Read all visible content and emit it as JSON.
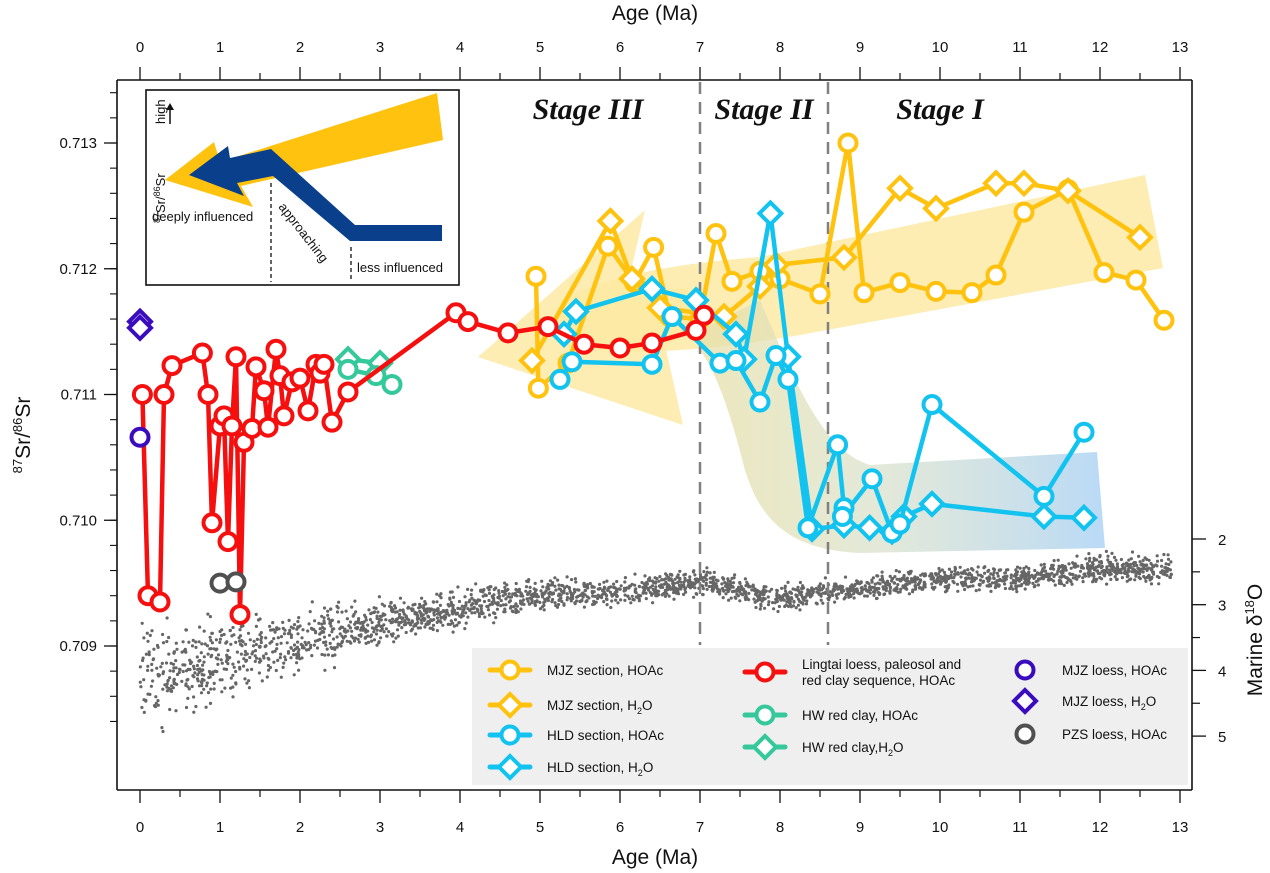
{
  "chart_data": {
    "type": "line",
    "title": "",
    "xlabel_bottom": "Age (Ma)",
    "xlabel_top": "Age (Ma)",
    "ylabel_left": {
      "sup": "87",
      "base": "Sr/",
      "sup2": "86",
      "base2": "Sr"
    },
    "ylabel_right": {
      "base": "Marine δ",
      "sup": "18",
      "base2": "O"
    },
    "xlim": [
      -0.3,
      13.3
    ],
    "ylim": [
      0.70818,
      0.71348
    ],
    "ylim_right_note": "inverted, 2 at top to 5 at bottom",
    "x_ticks": [
      0,
      1,
      2,
      3,
      4,
      5,
      6,
      7,
      8,
      9,
      10,
      11,
      12,
      13
    ],
    "y_ticks": [
      "0.709",
      "0.710",
      "0.711",
      "0.712",
      "0.713"
    ],
    "y_tick_values": [
      0.709,
      0.71,
      0.711,
      0.712,
      0.713
    ],
    "y_right_ticks": [
      2,
      3,
      4,
      5
    ],
    "grid": false,
    "stage_boundaries": [
      7.0,
      8.6
    ],
    "stage_labels": [
      {
        "label": "Stage III",
        "x": 5.6
      },
      {
        "label": "Stage II",
        "x": 7.8
      },
      {
        "label": "Stage I",
        "x": 10.0
      }
    ],
    "series": [
      {
        "name": "MJZ section, HOAc",
        "color": "#FFC20E",
        "marker": "circle",
        "line": true,
        "x": [
          4.95,
          4.98,
          5.35,
          5.85,
          6.18,
          6.42,
          6.62,
          7.0,
          7.2,
          7.4,
          7.75,
          8.0,
          8.5,
          8.85,
          9.05,
          9.5,
          9.95,
          10.4,
          10.7,
          11.05,
          11.6,
          12.05,
          12.45,
          12.8
        ],
        "y": [
          0.71194,
          0.71105,
          0.71125,
          0.71218,
          0.71189,
          0.71217,
          0.71162,
          0.7116,
          0.71228,
          0.7119,
          0.71198,
          0.71192,
          0.7118,
          0.713,
          0.71181,
          0.71189,
          0.71182,
          0.71181,
          0.71195,
          0.71245,
          0.71263,
          0.71197,
          0.71191,
          0.71159
        ]
      },
      {
        "name": "MJZ section, H2O",
        "color": "#FFC20E",
        "marker": "diamond",
        "line": true,
        "x": [
          4.9,
          5.88,
          6.15,
          6.5,
          7.3,
          7.75,
          7.95,
          8.8,
          9.5,
          9.95,
          10.7,
          11.05,
          11.6,
          12.5
        ],
        "y": [
          0.71127,
          0.71238,
          0.71192,
          0.71169,
          0.71162,
          0.71186,
          0.71203,
          0.71209,
          0.71264,
          0.71248,
          0.71268,
          0.71268,
          0.71262,
          0.71225
        ]
      },
      {
        "name": "HLD section, HOAc",
        "color": "#12C3F0",
        "marker": "circle",
        "line": true,
        "x": [
          5.25,
          5.4,
          6.4,
          6.65,
          7.25,
          7.45,
          7.75,
          7.95,
          8.1,
          8.35,
          8.72,
          8.8,
          8.78,
          9.15,
          9.4,
          9.5,
          9.9,
          11.3,
          11.8
        ],
        "y": [
          0.71112,
          0.71126,
          0.71124,
          0.71162,
          0.71125,
          0.71127,
          0.71094,
          0.71131,
          0.71112,
          0.70994,
          0.7106,
          0.7101,
          0.71003,
          0.71033,
          0.7099,
          0.70997,
          0.71092,
          0.71019,
          0.7107
        ]
      },
      {
        "name": "HLD section, H2O",
        "color": "#12C3F0",
        "marker": "diamond",
        "line": true,
        "x": [
          5.3,
          5.45,
          6.4,
          6.95,
          7.45,
          7.55,
          7.88,
          8.1,
          8.4,
          8.8,
          9.12,
          9.4,
          9.55,
          9.9,
          11.3,
          11.8
        ],
        "y": [
          0.71148,
          0.71166,
          0.71184,
          0.71175,
          0.71148,
          0.71128,
          0.71244,
          0.7113,
          0.70993,
          0.70996,
          0.70994,
          0.70991,
          0.71003,
          0.71013,
          0.71003,
          0.71002
        ]
      },
      {
        "name": "Lingtai loess, paleosol and red clay sequence, HOAc",
        "color": "#F50F0F",
        "marker": "circle",
        "line": true,
        "x": [
          0.03,
          0.1,
          0.25,
          0.3,
          0.4,
          0.78,
          0.85,
          0.9,
          1.0,
          1.05,
          1.1,
          1.15,
          1.2,
          1.25,
          1.3,
          1.4,
          1.45,
          1.55,
          1.6,
          1.7,
          1.75,
          1.8,
          1.9,
          2.0,
          2.1,
          2.2,
          2.25,
          2.3,
          2.4,
          2.6,
          3.95,
          4.1,
          4.6,
          5.1,
          5.55,
          6.0,
          6.4,
          6.95,
          7.05
        ],
        "y": [
          0.711,
          0.7094,
          0.70935,
          0.711,
          0.71123,
          0.71133,
          0.711,
          0.70998,
          0.71075,
          0.71083,
          0.70983,
          0.71075,
          0.7113,
          0.70925,
          0.71062,
          0.71073,
          0.71122,
          0.71103,
          0.71074,
          0.71136,
          0.71115,
          0.71083,
          0.7111,
          0.71113,
          0.71087,
          0.71124,
          0.71117,
          0.71124,
          0.71078,
          0.71102,
          0.71165,
          0.71158,
          0.71149,
          0.71154,
          0.7114,
          0.71137,
          0.71141,
          0.71151,
          0.71163
        ]
      },
      {
        "name": "HW red clay, HOAc",
        "color": "#35C89A",
        "marker": "circle",
        "line": true,
        "x": [
          2.6,
          2.95,
          3.15
        ],
        "y": [
          0.7112,
          0.71115,
          0.71108
        ]
      },
      {
        "name": "HW red clay, H2O",
        "color": "#35C89A",
        "marker": "diamond",
        "line": true,
        "x": [
          2.6,
          3.0
        ],
        "y": [
          0.71128,
          0.71125
        ]
      },
      {
        "name": "MJZ loess, HOAc",
        "color": "#3A0CBE",
        "marker": "circle",
        "line": false,
        "x": [
          0.0
        ],
        "y": [
          0.71066
        ]
      },
      {
        "name": "MJZ loess, H2O",
        "color": "#3A0CBE",
        "marker": "diamond",
        "line": false,
        "x": [
          0.0,
          0.0
        ],
        "y": [
          0.71158,
          0.71153
        ]
      },
      {
        "name": "PZS loess, HOAc",
        "color": "#505050",
        "marker": "circle",
        "line": false,
        "x": [
          1.0,
          1.2
        ],
        "y": [
          0.7095,
          0.70951
        ]
      }
    ],
    "marine_d18O": {
      "name": "Marine δ18O",
      "color": "#666666",
      "axis": "right",
      "trend_x": [
        0,
        1,
        2,
        3,
        4,
        5,
        6,
        7,
        8,
        9,
        10,
        11,
        12,
        12.9
      ],
      "trend_y": [
        4.1,
        3.85,
        3.55,
        3.3,
        3.05,
        2.85,
        2.8,
        2.65,
        2.9,
        2.75,
        2.6,
        2.6,
        2.45,
        2.45
      ],
      "spread": [
        1.0,
        0.9,
        0.65,
        0.5,
        0.4,
        0.3,
        0.3,
        0.3,
        0.25,
        0.25,
        0.25,
        0.25,
        0.3,
        0.3
      ]
    },
    "legend": {
      "placement": "bottom-right",
      "columns": [
        [
          {
            "label": "MJZ section, HOAc",
            "series": 0
          },
          {
            "label": "MJZ section, H",
            "sub": "2",
            "tail": "O",
            "series": 1
          },
          {
            "label": "HLD section, HOAc",
            "series": 2
          },
          {
            "label": "HLD section, H",
            "sub": "2",
            "tail": "O",
            "series": 3
          }
        ],
        [
          {
            "label": "Lingtai loess, paleosol and",
            "label2": "red clay sequence, HOAc",
            "series": 4
          },
          {
            "label": "HW red clay, HOAc",
            "series": 5
          },
          {
            "label": "HW red clay,H",
            "sub": "2",
            "tail": "O",
            "series": 6
          }
        ],
        [
          {
            "label": "MJZ loess, HOAc",
            "series": 7
          },
          {
            "label": "MJZ loess, H",
            "sub": "2",
            "tail": "O",
            "series": 8
          },
          {
            "label": "PZS loess, HOAc",
            "series": 9
          }
        ]
      ]
    },
    "inset": {
      "y_label": {
        "sup": "87",
        "base": "Sr/",
        "sup2": "86",
        "base2": "Sr"
      },
      "high_label": "high",
      "annotations": [
        "deeply influenced",
        "approaching",
        "less influenced"
      ],
      "colors": {
        "yellow": "#FFC20E",
        "blue": "#0A3F8C"
      }
    },
    "trend_bands": {
      "yellow": "#FCE9A0",
      "blue": "#B9DCF5"
    }
  }
}
